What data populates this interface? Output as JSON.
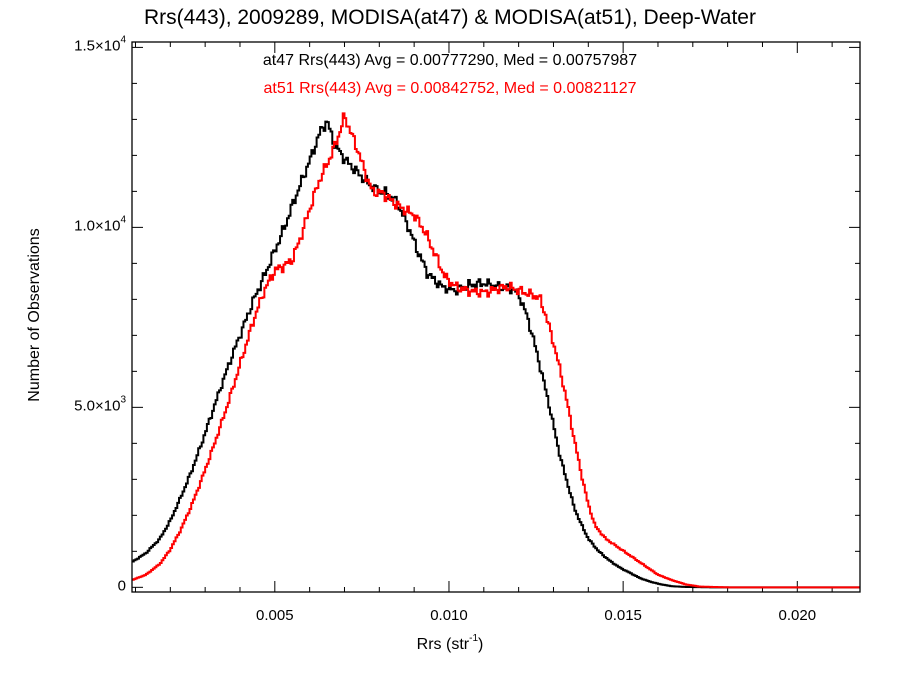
{
  "chart_data": {
    "type": "line",
    "title": "Rrs(443), 2009289, MODISA(at47) & MODISA(at51), Deep-Water",
    "xlabel": "Rrs",
    "xlabel_unit_base": "str",
    "xlabel_unit_exp": "-1",
    "ylabel": "Number of Observations",
    "xlim": [
      0.0009,
      0.0218
    ],
    "ylim": [
      -130,
      15150
    ],
    "x_ticks": [
      0.005,
      0.01,
      0.015,
      0.02
    ],
    "x_tick_labels": [
      "0.005",
      "0.010",
      "0.015",
      "0.020"
    ],
    "y_ticks": [
      0,
      5000,
      10000,
      15000
    ],
    "y_tick_labels": [
      {
        "mant": "0",
        "exp": ""
      },
      {
        "mant": "5.0×10",
        "exp": "3"
      },
      {
        "mant": "1.0×10",
        "exp": "4"
      },
      {
        "mant": "1.5×10",
        "exp": "4"
      }
    ],
    "grid": false,
    "annotations": [
      {
        "text": "at47 Rrs(443) Avg = 0.00777290, Med = 0.00757987",
        "color": "#000000"
      },
      {
        "text": "at51 Rrs(443) Avg = 0.00842752, Med = 0.00821127",
        "color": "#ff0000"
      }
    ],
    "series": [
      {
        "color": "#000000",
        "points": [
          [
            0.0009,
            700
          ],
          [
            0.0013,
            950
          ],
          [
            0.0017,
            1350
          ],
          [
            0.002,
            1850
          ],
          [
            0.0023,
            2500
          ],
          [
            0.0026,
            3200
          ],
          [
            0.0029,
            4000
          ],
          [
            0.0032,
            4850
          ],
          [
            0.0035,
            5700
          ],
          [
            0.0038,
            6500
          ],
          [
            0.0041,
            7250
          ],
          [
            0.0044,
            8000
          ],
          [
            0.0047,
            8650
          ],
          [
            0.005,
            9350
          ],
          [
            0.0053,
            10050
          ],
          [
            0.0055,
            10600
          ],
          [
            0.0057,
            11100
          ],
          [
            0.0059,
            11600
          ],
          [
            0.0061,
            12100
          ],
          [
            0.0063,
            12650
          ],
          [
            0.0065,
            12950
          ],
          [
            0.0067,
            12350
          ],
          [
            0.007,
            11900
          ],
          [
            0.0073,
            11600
          ],
          [
            0.0076,
            11300
          ],
          [
            0.0079,
            11050
          ],
          [
            0.0082,
            10950
          ],
          [
            0.0085,
            10700
          ],
          [
            0.0088,
            10100
          ],
          [
            0.0091,
            9350
          ],
          [
            0.0094,
            8700
          ],
          [
            0.0098,
            8350
          ],
          [
            0.0102,
            8250
          ],
          [
            0.0106,
            8400
          ],
          [
            0.011,
            8450
          ],
          [
            0.0114,
            8350
          ],
          [
            0.0118,
            8300
          ],
          [
            0.012,
            8150
          ],
          [
            0.0122,
            7650
          ],
          [
            0.0124,
            7000
          ],
          [
            0.0126,
            6200
          ],
          [
            0.0128,
            5400
          ],
          [
            0.013,
            4500
          ],
          [
            0.0132,
            3600
          ],
          [
            0.0134,
            2900
          ],
          [
            0.0136,
            2200
          ],
          [
            0.0138,
            1750
          ],
          [
            0.014,
            1350
          ],
          [
            0.0143,
            1000
          ],
          [
            0.0146,
            750
          ],
          [
            0.0149,
            550
          ],
          [
            0.0152,
            400
          ],
          [
            0.0155,
            250
          ],
          [
            0.0158,
            150
          ],
          [
            0.0161,
            80
          ],
          [
            0.0164,
            30
          ],
          [
            0.0168,
            10
          ],
          [
            0.0175,
            0
          ],
          [
            0.0218,
            0
          ]
        ]
      },
      {
        "color": "#ff0000",
        "points": [
          [
            0.0009,
            200
          ],
          [
            0.0013,
            350
          ],
          [
            0.0017,
            650
          ],
          [
            0.002,
            1050
          ],
          [
            0.0023,
            1600
          ],
          [
            0.0026,
            2250
          ],
          [
            0.0029,
            3000
          ],
          [
            0.0032,
            3800
          ],
          [
            0.0035,
            4650
          ],
          [
            0.0038,
            5550
          ],
          [
            0.0041,
            6500
          ],
          [
            0.0044,
            7450
          ],
          [
            0.0047,
            8250
          ],
          [
            0.005,
            8800
          ],
          [
            0.0053,
            8950
          ],
          [
            0.0055,
            9100
          ],
          [
            0.0057,
            9600
          ],
          [
            0.0059,
            10200
          ],
          [
            0.0061,
            10800
          ],
          [
            0.0063,
            11350
          ],
          [
            0.0065,
            11750
          ],
          [
            0.0067,
            12200
          ],
          [
            0.0069,
            12750
          ],
          [
            0.007,
            13100
          ],
          [
            0.0072,
            12600
          ],
          [
            0.0074,
            12100
          ],
          [
            0.0076,
            11500
          ],
          [
            0.0078,
            11000
          ],
          [
            0.0081,
            10950
          ],
          [
            0.0084,
            10700
          ],
          [
            0.0087,
            10500
          ],
          [
            0.009,
            10350
          ],
          [
            0.0093,
            9900
          ],
          [
            0.0096,
            9250
          ],
          [
            0.0099,
            8600
          ],
          [
            0.0102,
            8350
          ],
          [
            0.0105,
            8250
          ],
          [
            0.0108,
            8200
          ],
          [
            0.0111,
            8200
          ],
          [
            0.0114,
            8300
          ],
          [
            0.0117,
            8350
          ],
          [
            0.012,
            8250
          ],
          [
            0.0123,
            8150
          ],
          [
            0.0126,
            8050
          ],
          [
            0.0128,
            7500
          ],
          [
            0.013,
            6800
          ],
          [
            0.0132,
            6000
          ],
          [
            0.0134,
            5100
          ],
          [
            0.0136,
            4100
          ],
          [
            0.0138,
            3150
          ],
          [
            0.014,
            2300
          ],
          [
            0.0142,
            1700
          ],
          [
            0.0145,
            1350
          ],
          [
            0.0148,
            1150
          ],
          [
            0.0151,
            950
          ],
          [
            0.0154,
            750
          ],
          [
            0.0157,
            550
          ],
          [
            0.016,
            350
          ],
          [
            0.0164,
            200
          ],
          [
            0.0168,
            80
          ],
          [
            0.0172,
            20
          ],
          [
            0.018,
            0
          ],
          [
            0.0218,
            0
          ]
        ]
      }
    ]
  }
}
